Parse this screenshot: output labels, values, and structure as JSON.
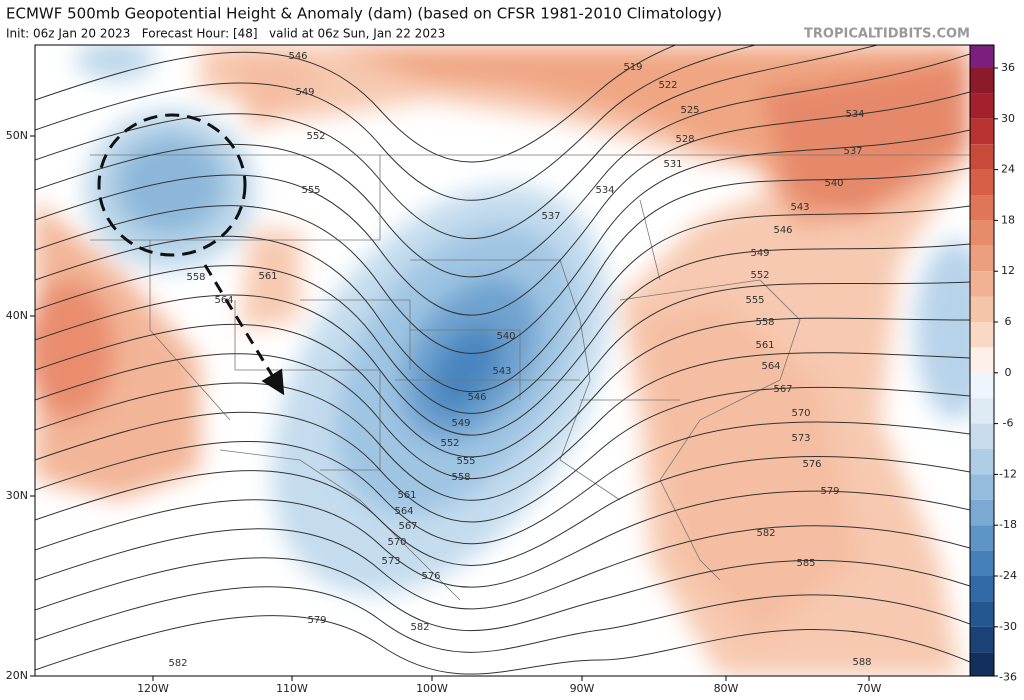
{
  "header": {
    "title": "ECMWF 500mb Geopotential Height & Anomaly (dam) (based on CFSR 1981-2010 Climatology)",
    "subtitle": "Init: 06z Jan 20 2023   Forecast Hour: [48]   valid at 06z Sun, Jan 22 2023",
    "watermark": "TROPICALTIDBITS.COM"
  },
  "map": {
    "lat_labels": [
      "50N",
      "40N",
      "30N",
      "20N"
    ],
    "lon_labels": [
      "120W",
      "110W",
      "100W",
      "90W",
      "80W",
      "70W"
    ],
    "contour_labels": [
      "546",
      "549",
      "552",
      "555",
      "558",
      "561",
      "564",
      "519",
      "522",
      "525",
      "528",
      "531",
      "534",
      "537",
      "534",
      "537",
      "540",
      "543",
      "546",
      "549",
      "552",
      "555",
      "558",
      "561",
      "564",
      "567",
      "570",
      "573",
      "576",
      "579",
      "582",
      "585",
      "588",
      "540",
      "543",
      "546",
      "549",
      "552",
      "555",
      "558",
      "561",
      "564",
      "567",
      "570",
      "573",
      "576",
      "579",
      "582",
      "582"
    ]
  },
  "colorbar": {
    "ticks": [
      "36",
      "30",
      "24",
      "18",
      "12",
      "6",
      "0",
      "-6",
      "-12",
      "-18",
      "-24",
      "-30",
      "-36"
    ]
  }
}
